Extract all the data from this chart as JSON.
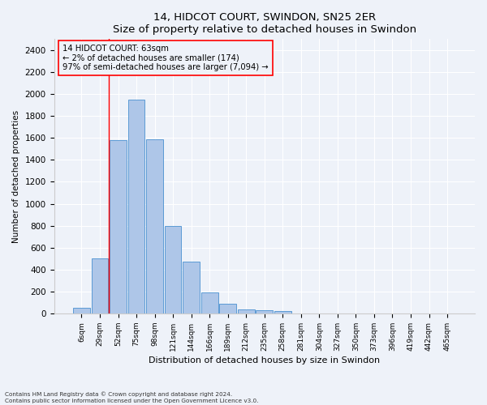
{
  "title": "14, HIDCOT COURT, SWINDON, SN25 2ER",
  "subtitle": "Size of property relative to detached houses in Swindon",
  "xlabel": "Distribution of detached houses by size in Swindon",
  "ylabel": "Number of detached properties",
  "bar_color": "#aec6e8",
  "bar_edge_color": "#5b9bd5",
  "categories": [
    "6sqm",
    "29sqm",
    "52sqm",
    "75sqm",
    "98sqm",
    "121sqm",
    "144sqm",
    "166sqm",
    "189sqm",
    "212sqm",
    "235sqm",
    "258sqm",
    "281sqm",
    "304sqm",
    "327sqm",
    "350sqm",
    "373sqm",
    "396sqm",
    "419sqm",
    "442sqm",
    "465sqm"
  ],
  "values": [
    55,
    500,
    1580,
    1950,
    1590,
    800,
    475,
    195,
    90,
    35,
    28,
    20,
    0,
    0,
    0,
    0,
    0,
    0,
    0,
    0,
    0
  ],
  "ylim": [
    0,
    2500
  ],
  "yticks": [
    0,
    200,
    400,
    600,
    800,
    1000,
    1200,
    1400,
    1600,
    1800,
    2000,
    2200,
    2400
  ],
  "property_line_x": 1.5,
  "annotation_title": "14 HIDCOT COURT: 63sqm",
  "annotation_line1": "← 2% of detached houses are smaller (174)",
  "annotation_line2": "97% of semi-detached houses are larger (7,094) →",
  "footnote1": "Contains HM Land Registry data © Crown copyright and database right 2024.",
  "footnote2": "Contains public sector information licensed under the Open Government Licence v3.0.",
  "background_color": "#eef2f9",
  "grid_color": "#ffffff"
}
